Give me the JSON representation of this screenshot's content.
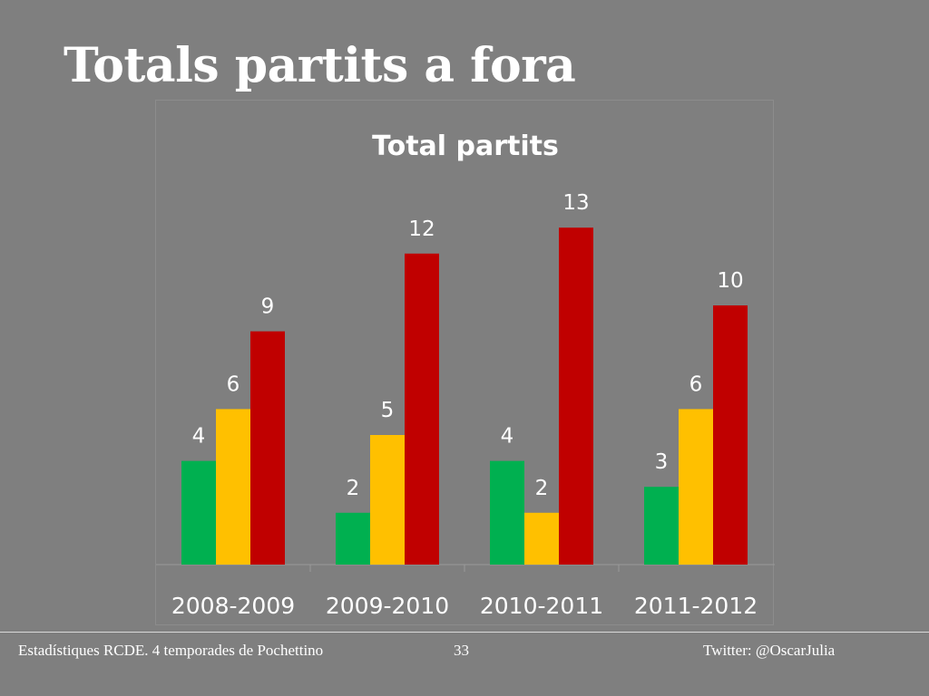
{
  "slide": {
    "title": "Totals partits a fora"
  },
  "footer": {
    "left": "Estadístiques RCDE. 4 temporades de Pochettino",
    "page_number": "33",
    "right": "Twitter: @OscarJulia"
  },
  "chart_data": {
    "type": "bar",
    "title": "Total partits",
    "xlabel": "",
    "ylabel": "",
    "categories": [
      "2008-2009",
      "2009-2010",
      "2010-2011",
      "2011-2012"
    ],
    "series": [
      {
        "values": [
          4,
          2,
          4,
          3
        ],
        "color": "#00b050"
      },
      {
        "values": [
          6,
          5,
          2,
          6
        ],
        "color": "#ffc000"
      },
      {
        "values": [
          9,
          12,
          13,
          10
        ],
        "color": "#c00000"
      }
    ],
    "ylim": [
      0,
      13
    ],
    "grid": false,
    "legend": "none",
    "data_labels": true
  }
}
